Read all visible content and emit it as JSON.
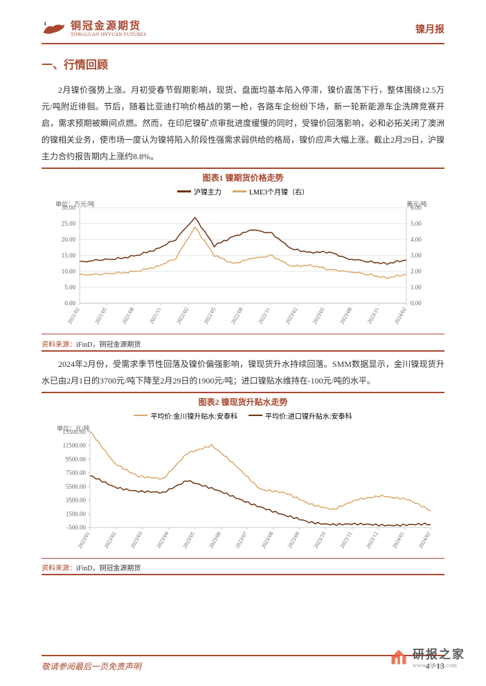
{
  "header": {
    "logo_title": "铜冠金源期货",
    "logo_subtitle": "TONGGUAN JINYUAN FUTURES",
    "right_label": "镍月报"
  },
  "section_title": "一、行情回顾",
  "paragraph1": "2月镍价强势上涨。月初受春节假期影响，现货、盘面均基本陷入停滞，镍价震荡下行，整体围绕12.5万元/吨附近徘徊。节后，随着比亚迪打响价格战的第一枪，各路车企纷纷下场，新一轮新能源车企洗牌竞赛开启，需求预期被瞬间点燃。然而，在印尼镍矿点审批进度缓慢的同时，受镍价回落影响，必和必拓关闭了澳洲的镍相关业务，使市场一度认为镍将陷入阶段性强需求弱供给的格局，镍价应声大幅上涨。截止2月29日，沪镍主力合约报告期内上涨约8.8%。",
  "paragraph2": "2024年2月份，受需求季节性回落及镍价偏强影响，镍现货升水持续回落。SMM数据显示，金川镍现货升水已由2月1日的3700元/吨下降至2月29日的1900元/吨；进口镍贴水维持在-100元/吨的水平。",
  "chart1": {
    "type": "line",
    "title": "图表1 镍期货价格走势",
    "y_left_label": "单位：万元/吨",
    "y_right_label": "美元/吨",
    "legend": [
      {
        "name": "沪镍主力",
        "color": "#6b3410"
      },
      {
        "name": "LME3个月镍（右）",
        "color": "#d9a868"
      }
    ],
    "x_labels": [
      "2021/02",
      "2021/05",
      "2021/08",
      "2021/11",
      "2022/02",
      "2022/05",
      "2022/08",
      "2022/11",
      "2023/02",
      "2023/05",
      "2023/08",
      "2023/11",
      "2024/02"
    ],
    "y_left_ticks": [
      0,
      5,
      10,
      15,
      20,
      25,
      30
    ],
    "y_right_ticks": [
      0,
      1,
      2,
      3,
      4,
      5,
      6
    ],
    "y_left_lim": [
      0,
      30
    ],
    "y_right_lim": [
      0,
      6
    ],
    "series1_color": "#6b3410",
    "series2_color": "#d9a868",
    "background_color": "#ffffff",
    "grid_color": "#cccccc",
    "line_width": 1.5,
    "series1": [
      13,
      13.5,
      14,
      15,
      17,
      20,
      27,
      18,
      21,
      23,
      22,
      17,
      16,
      16,
      14,
      13,
      12.5,
      13.5
    ],
    "series2": [
      1.8,
      1.8,
      1.9,
      2.0,
      2.3,
      2.8,
      4.8,
      3.0,
      2.5,
      2.8,
      3.0,
      2.3,
      2.4,
      2.1,
      2.0,
      1.8,
      1.6,
      1.8
    ]
  },
  "chart2": {
    "type": "line",
    "title": "图表2 镍现货升贴水走势",
    "y_label": "单位：元/吨",
    "legend": [
      {
        "name": "平均价:金川镍升贴水:安泰科",
        "color": "#d9a868"
      },
      {
        "name": "平均价:进口镍升贴水:安泰科",
        "color": "#6b3410"
      }
    ],
    "x_labels": [
      "2023/01",
      "2023/02",
      "2023/03",
      "2023/04",
      "2023/05",
      "2023/06",
      "2023/07",
      "2023/08",
      "2023/09",
      "2023/10",
      "2023/11",
      "2023/12",
      "2024/01",
      "2024/02"
    ],
    "y_ticks": [
      -500,
      1500,
      3500,
      5500,
      7500,
      9500,
      11500,
      13500
    ],
    "y_lim": [
      -500,
      13500
    ],
    "series1_color": "#d9a868",
    "series2_color": "#6b3410",
    "background_color": "#ffffff",
    "line_width": 1.5,
    "series1": [
      13500,
      9000,
      7000,
      6500,
      10500,
      11500,
      8500,
      5200,
      4500,
      3000,
      2200,
      3500,
      4200,
      3700,
      1900
    ],
    "series2": [
      7000,
      5500,
      4800,
      4500,
      6500,
      5200,
      3800,
      2600,
      1200,
      300,
      0,
      -100,
      -100,
      -100,
      -100
    ]
  },
  "source": {
    "label": "资料来源：",
    "text": "iFinD，铜冠金源期货"
  },
  "footer": {
    "disclaimer": "敬请参阅最后一页免责声明",
    "page_current": "4",
    "page_sep": " / ",
    "page_total": "13"
  },
  "watermark": {
    "title": "研报之家",
    "url": "www.yblook.com"
  }
}
